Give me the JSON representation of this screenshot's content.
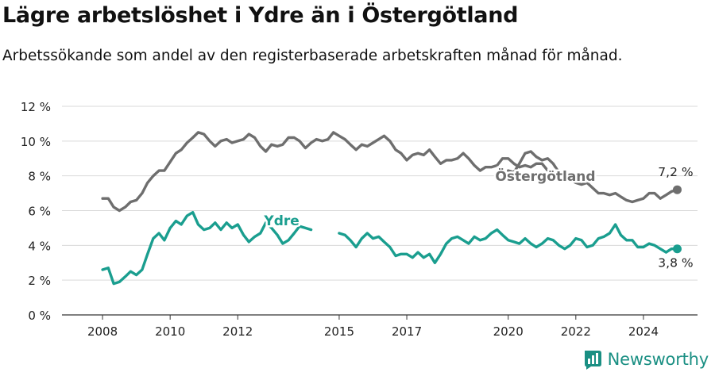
{
  "title": "Lägre arbetslöshet i Ydre än i Östergötland",
  "subtitle": "Arbetssökande som andel av den registerbaserade arbetskraften månad för månad.",
  "logo_text": "Newsworthy",
  "chart_data": {
    "type": "line",
    "x_unit": "year (decimal)",
    "xlim": [
      2006.8,
      2025.6
    ],
    "ylim": [
      0,
      12
    ],
    "y_ticks": [
      0,
      2,
      4,
      6,
      8,
      10,
      12
    ],
    "y_tick_labels": [
      "0 %",
      "2 %",
      "4 %",
      "6 %",
      "8 %",
      "10 %",
      "12 %"
    ],
    "x_ticks": [
      2008,
      2010,
      2012,
      2015,
      2017,
      2020,
      2022,
      2024
    ],
    "x_tick_labels": [
      "2008",
      "2010",
      "2012",
      "2015",
      "2017",
      "2020",
      "2022",
      "2024"
    ],
    "grid": "horizontal",
    "legend": "inline labels",
    "series": [
      {
        "name": "Östergötland",
        "color": "#6e6e6e",
        "end_label": "7,2 %",
        "points": [
          [
            2008.0,
            6.7
          ],
          [
            2008.17,
            6.7
          ],
          [
            2008.33,
            6.2
          ],
          [
            2008.5,
            6.0
          ],
          [
            2008.67,
            6.2
          ],
          [
            2008.83,
            6.5
          ],
          [
            2009.0,
            6.6
          ],
          [
            2009.17,
            7.0
          ],
          [
            2009.33,
            7.6
          ],
          [
            2009.5,
            8.0
          ],
          [
            2009.67,
            8.3
          ],
          [
            2009.83,
            8.3
          ],
          [
            2010.0,
            8.8
          ],
          [
            2010.17,
            9.3
          ],
          [
            2010.33,
            9.5
          ],
          [
            2010.5,
            9.9
          ],
          [
            2010.67,
            10.2
          ],
          [
            2010.83,
            10.5
          ],
          [
            2011.0,
            10.4
          ],
          [
            2011.17,
            10.0
          ],
          [
            2011.33,
            9.7
          ],
          [
            2011.5,
            10.0
          ],
          [
            2011.67,
            10.1
          ],
          [
            2011.83,
            9.9
          ],
          [
            2012.0,
            10.0
          ],
          [
            2012.17,
            10.1
          ],
          [
            2012.33,
            10.4
          ],
          [
            2012.5,
            10.2
          ],
          [
            2012.67,
            9.7
          ],
          [
            2012.83,
            9.4
          ],
          [
            2013.0,
            9.8
          ],
          [
            2013.17,
            9.7
          ],
          [
            2013.33,
            9.8
          ],
          [
            2013.5,
            10.2
          ],
          [
            2013.67,
            10.2
          ],
          [
            2013.83,
            10.0
          ],
          [
            2014.0,
            9.6
          ],
          [
            2014.17,
            9.9
          ],
          [
            2014.33,
            10.1
          ],
          [
            2014.5,
            10.0
          ],
          [
            2014.67,
            10.1
          ],
          [
            2014.83,
            10.5
          ],
          [
            2015.0,
            10.3
          ],
          [
            2015.17,
            10.1
          ],
          [
            2015.33,
            9.8
          ],
          [
            2015.5,
            9.5
          ],
          [
            2015.67,
            9.8
          ],
          [
            2015.83,
            9.7
          ],
          [
            2016.0,
            9.9
          ],
          [
            2016.17,
            10.1
          ],
          [
            2016.33,
            10.3
          ],
          [
            2016.5,
            10.0
          ],
          [
            2016.67,
            9.5
          ],
          [
            2016.83,
            9.3
          ],
          [
            2017.0,
            8.9
          ],
          [
            2017.17,
            9.2
          ],
          [
            2017.33,
            9.3
          ],
          [
            2017.5,
            9.2
          ],
          [
            2017.67,
            9.5
          ],
          [
            2017.83,
            9.1
          ],
          [
            2018.0,
            8.7
          ],
          [
            2018.17,
            8.9
          ],
          [
            2018.33,
            8.9
          ],
          [
            2018.5,
            9.0
          ],
          [
            2018.67,
            9.3
          ],
          [
            2018.83,
            9.0
          ],
          [
            2019.0,
            8.6
          ],
          [
            2019.17,
            8.3
          ],
          [
            2019.33,
            8.5
          ],
          [
            2019.5,
            8.5
          ],
          [
            2019.67,
            8.6
          ],
          [
            2019.83,
            9.0
          ],
          [
            2020.0,
            9.0
          ],
          [
            2020.17,
            8.7
          ],
          [
            2020.33,
            8.5
          ],
          [
            2020.5,
            8.6
          ],
          [
            2020.67,
            8.5
          ],
          [
            2020.83,
            8.7
          ],
          [
            2021.0,
            8.7
          ],
          [
            2021.17,
            8.3
          ]
        ]
      },
      {
        "name": "Östergötland",
        "color": "#6e6e6e",
        "end_label": "7,2 %",
        "points": [
          [
            2020.0,
            8.3
          ],
          [
            2020.17,
            8.2
          ],
          [
            2020.33,
            8.7
          ],
          [
            2020.5,
            9.3
          ],
          [
            2020.67,
            9.4
          ],
          [
            2020.83,
            9.1
          ],
          [
            2021.0,
            8.9
          ],
          [
            2021.17,
            9.0
          ],
          [
            2021.33,
            8.7
          ],
          [
            2021.5,
            8.2
          ],
          [
            2021.67,
            7.9
          ],
          [
            2021.83,
            7.8
          ],
          [
            2022.0,
            7.6
          ],
          [
            2022.17,
            7.5
          ],
          [
            2022.33,
            7.6
          ],
          [
            2022.5,
            7.3
          ],
          [
            2022.67,
            7.0
          ],
          [
            2022.83,
            7.0
          ],
          [
            2023.0,
            6.9
          ],
          [
            2023.17,
            7.0
          ],
          [
            2023.33,
            6.8
          ],
          [
            2023.5,
            6.6
          ],
          [
            2023.67,
            6.5
          ],
          [
            2023.83,
            6.6
          ],
          [
            2024.0,
            6.7
          ],
          [
            2024.17,
            7.0
          ],
          [
            2024.33,
            7.0
          ],
          [
            2024.5,
            6.7
          ],
          [
            2024.67,
            6.9
          ],
          [
            2024.83,
            7.1
          ],
          [
            2025.0,
            7.2
          ]
        ]
      },
      {
        "name": "Ydre",
        "color": "#1a9e8f",
        "end_label": "3,8 %",
        "points": [
          [
            2008.0,
            2.6
          ],
          [
            2008.17,
            2.7
          ],
          [
            2008.33,
            1.8
          ],
          [
            2008.5,
            1.9
          ],
          [
            2008.67,
            2.2
          ],
          [
            2008.83,
            2.5
          ],
          [
            2009.0,
            2.3
          ],
          [
            2009.17,
            2.6
          ],
          [
            2009.33,
            3.5
          ],
          [
            2009.5,
            4.4
          ],
          [
            2009.67,
            4.7
          ],
          [
            2009.83,
            4.3
          ],
          [
            2010.0,
            5.0
          ],
          [
            2010.17,
            5.4
          ],
          [
            2010.33,
            5.2
          ],
          [
            2010.5,
            5.7
          ],
          [
            2010.67,
            5.9
          ],
          [
            2010.83,
            5.2
          ],
          [
            2011.0,
            4.9
          ],
          [
            2011.17,
            5.0
          ],
          [
            2011.33,
            5.3
          ],
          [
            2011.5,
            4.9
          ],
          [
            2011.67,
            5.3
          ],
          [
            2011.83,
            5.0
          ],
          [
            2012.0,
            5.2
          ],
          [
            2012.17,
            4.6
          ],
          [
            2012.33,
            4.2
          ],
          [
            2012.5,
            4.5
          ],
          [
            2012.67,
            4.7
          ],
          [
            2012.83,
            5.3
          ],
          [
            2013.0,
            5.0
          ],
          [
            2013.17,
            4.6
          ],
          [
            2013.33,
            4.1
          ],
          [
            2013.5,
            4.3
          ],
          [
            2013.67,
            4.7
          ],
          [
            2013.83,
            5.1
          ],
          [
            2014.0,
            5.0
          ],
          [
            2014.17,
            4.9
          ]
        ]
      },
      {
        "name": "Ydre",
        "color": "#1a9e8f",
        "end_label": "3,8 %",
        "points": [
          [
            2015.0,
            4.7
          ],
          [
            2015.17,
            4.6
          ],
          [
            2015.33,
            4.3
          ],
          [
            2015.5,
            3.9
          ],
          [
            2015.67,
            4.4
          ],
          [
            2015.83,
            4.7
          ],
          [
            2016.0,
            4.4
          ],
          [
            2016.17,
            4.5
          ],
          [
            2016.33,
            4.2
          ],
          [
            2016.5,
            3.9
          ],
          [
            2016.67,
            3.4
          ],
          [
            2016.83,
            3.5
          ],
          [
            2017.0,
            3.5
          ],
          [
            2017.17,
            3.3
          ],
          [
            2017.33,
            3.6
          ],
          [
            2017.5,
            3.3
          ],
          [
            2017.67,
            3.5
          ],
          [
            2017.83,
            3.0
          ],
          [
            2018.0,
            3.5
          ],
          [
            2018.17,
            4.1
          ],
          [
            2018.33,
            4.4
          ],
          [
            2018.5,
            4.5
          ],
          [
            2018.67,
            4.3
          ],
          [
            2018.83,
            4.1
          ],
          [
            2019.0,
            4.5
          ],
          [
            2019.17,
            4.3
          ],
          [
            2019.33,
            4.4
          ],
          [
            2019.5,
            4.7
          ],
          [
            2019.67,
            4.9
          ],
          [
            2019.83,
            4.6
          ],
          [
            2020.0,
            4.3
          ],
          [
            2020.17,
            4.2
          ],
          [
            2020.33,
            4.1
          ],
          [
            2020.5,
            4.4
          ],
          [
            2020.67,
            4.1
          ],
          [
            2020.83,
            3.9
          ],
          [
            2021.0,
            4.1
          ],
          [
            2021.17,
            4.4
          ],
          [
            2021.33,
            4.3
          ],
          [
            2021.5,
            4.0
          ],
          [
            2021.67,
            3.8
          ],
          [
            2021.83,
            4.0
          ],
          [
            2022.0,
            4.4
          ],
          [
            2022.17,
            4.3
          ],
          [
            2022.33,
            3.9
          ],
          [
            2022.5,
            4.0
          ],
          [
            2022.67,
            4.4
          ],
          [
            2022.83,
            4.5
          ],
          [
            2023.0,
            4.7
          ],
          [
            2023.17,
            5.2
          ],
          [
            2023.33,
            4.6
          ],
          [
            2023.5,
            4.3
          ],
          [
            2023.67,
            4.3
          ],
          [
            2023.83,
            3.9
          ],
          [
            2024.0,
            3.9
          ],
          [
            2024.17,
            4.1
          ],
          [
            2024.33,
            4.0
          ],
          [
            2024.5,
            3.8
          ],
          [
            2024.67,
            3.6
          ],
          [
            2024.83,
            3.8
          ],
          [
            2025.0,
            3.8
          ]
        ]
      }
    ],
    "labels": [
      {
        "text": "Östergötland",
        "series": "Östergötland",
        "x": 2021.1,
        "y": 7.7
      },
      {
        "text": "Ydre",
        "series": "Ydre",
        "x": 2013.3,
        "y": 5.15
      }
    ]
  }
}
